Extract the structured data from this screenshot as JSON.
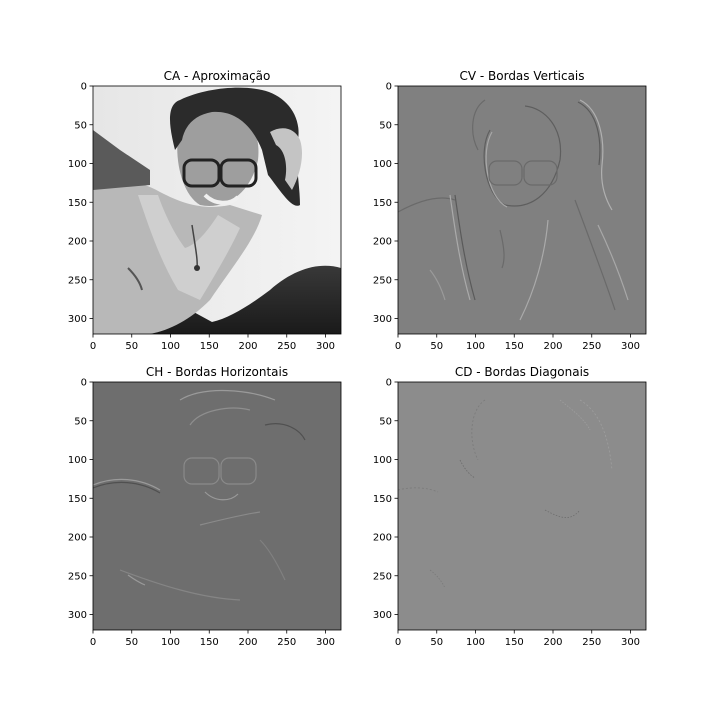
{
  "chart_data": [
    {
      "type": "heatmap",
      "title": "CA - Aproximação",
      "xlim": [
        0,
        320
      ],
      "ylim": [
        320,
        0
      ],
      "x_ticks": [
        0,
        50,
        100,
        150,
        200,
        250,
        300
      ],
      "y_ticks": [
        0,
        50,
        100,
        150,
        200,
        250,
        300
      ],
      "content": "grayscale portrait photo",
      "colormap": "gray"
    },
    {
      "type": "heatmap",
      "title": "CV - Bordas Verticais",
      "xlim": [
        0,
        320
      ],
      "ylim": [
        320,
        0
      ],
      "x_ticks": [
        0,
        50,
        100,
        150,
        200,
        250,
        300
      ],
      "y_ticks": [
        0,
        50,
        100,
        150,
        200,
        250,
        300
      ],
      "content": "vertical edge detail map",
      "colormap": "gray"
    },
    {
      "type": "heatmap",
      "title": "CH - Bordas Horizontais",
      "xlim": [
        0,
        320
      ],
      "ylim": [
        320,
        0
      ],
      "x_ticks": [
        0,
        50,
        100,
        150,
        200,
        250,
        300
      ],
      "y_ticks": [
        0,
        50,
        100,
        150,
        200,
        250,
        300
      ],
      "content": "horizontal edge detail map",
      "colormap": "gray"
    },
    {
      "type": "heatmap",
      "title": "CD - Bordas Diagonais",
      "xlim": [
        0,
        320
      ],
      "ylim": [
        320,
        0
      ],
      "x_ticks": [
        0,
        50,
        100,
        150,
        200,
        250,
        300
      ],
      "y_ticks": [
        0,
        50,
        100,
        150,
        200,
        250,
        300
      ],
      "content": "diagonal edge detail map",
      "colormap": "gray"
    }
  ]
}
